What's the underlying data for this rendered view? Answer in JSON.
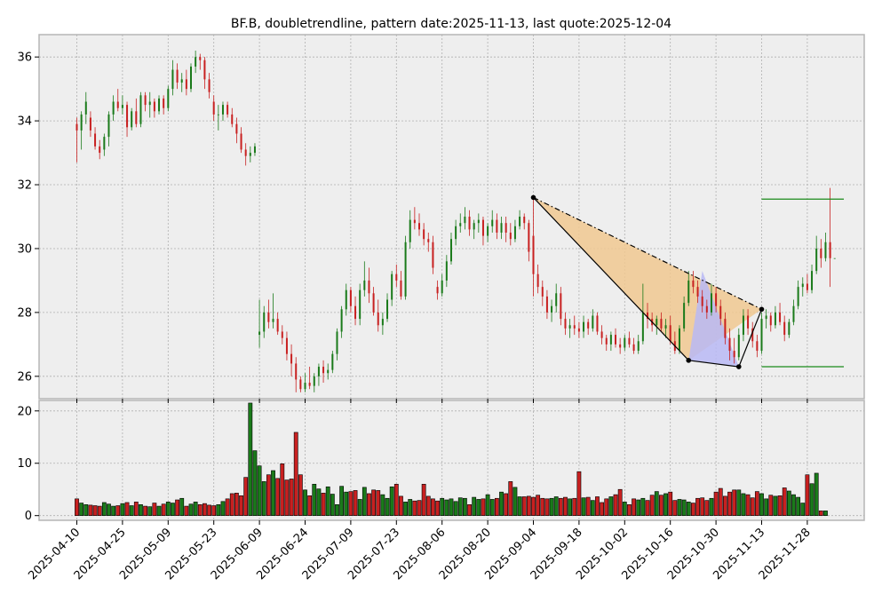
{
  "chart_data": {
    "type": "candlestick",
    "title": "BF.B, doubletrendline, pattern date:2025-11-13, last quote:2025-12-04",
    "price_ylim": [
      25.3,
      36.7
    ],
    "price_yticks": [
      26,
      28,
      30,
      32,
      34,
      36
    ],
    "volume_ylim": [
      -0.9,
      22
    ],
    "volume_yticks": [
      0,
      10,
      20
    ],
    "xtick_labels": [
      "2025-04-10",
      "2025-04-25",
      "2025-05-09",
      "2025-05-23",
      "2025-06-09",
      "2025-06-24",
      "2025-07-09",
      "2025-07-23",
      "2025-08-06",
      "2025-08-20",
      "2025-09-04",
      "2025-09-18",
      "2025-10-02",
      "2025-10-16",
      "2025-10-30",
      "2025-11-13",
      "2025-11-28"
    ],
    "xtick_index": [
      0,
      10,
      20,
      30,
      40,
      50,
      60,
      70,
      80,
      90,
      100,
      110,
      120,
      130,
      140,
      150,
      160
    ],
    "n_bars": 165,
    "colors": {
      "up": "#1a7a1a",
      "down": "#c82020",
      "triangle_left": "#f0c890",
      "triangle_right": "#b8b8f4",
      "level_line": "#1a8a1a",
      "background": "#eeeeee",
      "grid": "#b0b0b0"
    },
    "ohlc": [
      [
        33.9,
        34.1,
        32.7,
        33.7
      ],
      [
        33.7,
        34.3,
        33.1,
        34.2
      ],
      [
        34.2,
        34.9,
        33.9,
        34.6
      ],
      [
        34.1,
        34.3,
        33.5,
        33.7
      ],
      [
        33.6,
        33.8,
        33.1,
        33.2
      ],
      [
        33.2,
        33.4,
        32.8,
        33.0
      ],
      [
        33.1,
        33.6,
        32.9,
        33.5
      ],
      [
        33.5,
        34.3,
        33.2,
        34.2
      ],
      [
        34.2,
        34.8,
        34.0,
        34.6
      ],
      [
        34.6,
        35.0,
        34.3,
        34.4
      ],
      [
        34.4,
        34.8,
        34.2,
        34.5
      ],
      [
        34.5,
        34.6,
        33.5,
        33.8
      ],
      [
        33.8,
        34.4,
        33.7,
        34.3
      ],
      [
        34.3,
        34.7,
        33.8,
        33.9
      ],
      [
        33.9,
        34.9,
        33.8,
        34.8
      ],
      [
        34.8,
        34.9,
        34.3,
        34.5
      ],
      [
        34.5,
        34.9,
        34.1,
        34.6
      ],
      [
        34.6,
        34.7,
        34.1,
        34.3
      ],
      [
        34.3,
        34.8,
        34.2,
        34.7
      ],
      [
        34.7,
        34.8,
        34.2,
        34.4
      ],
      [
        34.4,
        35.1,
        34.3,
        35.0
      ],
      [
        35.0,
        35.9,
        34.8,
        35.6
      ],
      [
        35.6,
        35.8,
        35.0,
        35.2
      ],
      [
        35.2,
        35.5,
        34.9,
        35.3
      ],
      [
        35.3,
        35.6,
        34.8,
        35.0
      ],
      [
        35.0,
        35.8,
        34.9,
        35.7
      ],
      [
        35.7,
        36.2,
        35.5,
        36.0
      ],
      [
        36.0,
        36.1,
        35.6,
        35.9
      ],
      [
        35.9,
        36.0,
        35.0,
        35.3
      ],
      [
        35.3,
        35.5,
        34.7,
        34.9
      ],
      [
        34.6,
        34.8,
        34.0,
        34.2
      ],
      [
        34.2,
        34.5,
        33.7,
        34.2
      ],
      [
        34.2,
        34.6,
        34.0,
        34.5
      ],
      [
        34.5,
        34.6,
        34.1,
        34.2
      ],
      [
        34.2,
        34.4,
        33.8,
        33.9
      ],
      [
        33.9,
        34.1,
        33.3,
        33.6
      ],
      [
        33.6,
        33.8,
        33.0,
        33.1
      ],
      [
        33.1,
        33.3,
        32.6,
        32.9
      ],
      [
        32.9,
        33.2,
        32.7,
        33.0
      ],
      [
        33.0,
        33.3,
        32.9,
        33.2
      ],
      [
        27.3,
        28.4,
        26.9,
        27.4
      ],
      [
        27.4,
        28.2,
        27.2,
        28.0
      ],
      [
        28.0,
        28.4,
        27.5,
        27.7
      ],
      [
        27.7,
        28.6,
        27.5,
        27.8
      ],
      [
        27.8,
        28.0,
        27.3,
        27.4
      ],
      [
        27.4,
        27.6,
        27.0,
        27.2
      ],
      [
        27.2,
        27.4,
        26.5,
        26.7
      ],
      [
        26.7,
        27.0,
        26.0,
        26.4
      ],
      [
        26.4,
        26.6,
        25.5,
        25.9
      ],
      [
        25.9,
        26.0,
        25.5,
        25.6
      ],
      [
        25.6,
        26.1,
        25.5,
        25.8
      ],
      [
        25.8,
        26.3,
        25.6,
        25.7
      ],
      [
        25.7,
        26.1,
        25.5,
        26.0
      ],
      [
        26.0,
        26.4,
        25.7,
        26.3
      ],
      [
        26.3,
        26.5,
        25.8,
        26.1
      ],
      [
        26.1,
        26.4,
        25.9,
        26.2
      ],
      [
        26.2,
        26.8,
        26.1,
        26.7
      ],
      [
        26.7,
        27.5,
        26.5,
        27.4
      ],
      [
        27.4,
        28.2,
        27.2,
        28.1
      ],
      [
        28.1,
        28.9,
        27.9,
        28.7
      ],
      [
        28.7,
        28.8,
        28.0,
        28.2
      ],
      [
        28.2,
        28.5,
        27.6,
        27.8
      ],
      [
        27.8,
        28.9,
        27.6,
        28.7
      ],
      [
        28.7,
        29.6,
        28.5,
        29.0
      ],
      [
        29.0,
        29.4,
        28.3,
        28.6
      ],
      [
        28.6,
        28.8,
        27.9,
        28.0
      ],
      [
        28.0,
        28.4,
        27.4,
        27.6
      ],
      [
        27.6,
        28.0,
        27.3,
        27.8
      ],
      [
        27.8,
        28.6,
        27.7,
        28.4
      ],
      [
        28.4,
        29.3,
        28.2,
        29.2
      ],
      [
        29.2,
        29.5,
        28.8,
        29.0
      ],
      [
        29.0,
        29.3,
        28.4,
        28.5
      ],
      [
        28.5,
        30.4,
        28.4,
        30.2
      ],
      [
        30.2,
        31.2,
        30.0,
        30.9
      ],
      [
        30.9,
        31.3,
        30.6,
        30.8
      ],
      [
        30.8,
        31.1,
        30.4,
        30.6
      ],
      [
        30.6,
        30.8,
        30.1,
        30.3
      ],
      [
        30.3,
        30.5,
        29.9,
        30.2
      ],
      [
        30.2,
        30.4,
        29.2,
        29.4
      ],
      [
        28.8,
        29.0,
        28.4,
        28.6
      ],
      [
        28.6,
        29.2,
        28.5,
        29.0
      ],
      [
        29.0,
        29.8,
        28.8,
        29.6
      ],
      [
        29.6,
        30.5,
        29.5,
        30.3
      ],
      [
        30.3,
        30.9,
        30.1,
        30.7
      ],
      [
        30.7,
        31.1,
        30.5,
        30.8
      ],
      [
        30.8,
        31.3,
        30.6,
        31.0
      ],
      [
        31.0,
        31.2,
        30.4,
        30.6
      ],
      [
        30.6,
        30.9,
        30.3,
        30.8
      ],
      [
        30.8,
        31.1,
        30.5,
        30.9
      ],
      [
        30.9,
        31.0,
        30.1,
        30.4
      ],
      [
        30.4,
        30.8,
        30.2,
        30.7
      ],
      [
        30.7,
        31.2,
        30.5,
        30.9
      ],
      [
        30.9,
        31.1,
        30.3,
        30.5
      ],
      [
        30.5,
        31.0,
        30.3,
        30.8
      ],
      [
        30.8,
        31.0,
        30.2,
        30.5
      ],
      [
        30.5,
        30.8,
        30.1,
        30.3
      ],
      [
        30.3,
        30.9,
        30.2,
        30.7
      ],
      [
        30.7,
        31.2,
        30.6,
        31.0
      ],
      [
        31.0,
        31.1,
        30.6,
        30.8
      ],
      [
        30.8,
        30.9,
        29.6,
        29.9
      ],
      [
        30.4,
        31.6,
        28.5,
        29.2
      ],
      [
        29.2,
        29.5,
        28.6,
        28.8
      ],
      [
        28.8,
        29.0,
        28.2,
        28.5
      ],
      [
        28.5,
        28.7,
        27.8,
        28.0
      ],
      [
        28.0,
        28.4,
        27.7,
        28.2
      ],
      [
        28.2,
        28.9,
        28.0,
        28.6
      ],
      [
        28.6,
        28.8,
        27.6,
        27.8
      ],
      [
        27.8,
        28.0,
        27.3,
        27.5
      ],
      [
        27.5,
        27.8,
        27.2,
        27.6
      ],
      [
        27.6,
        27.9,
        27.3,
        27.5
      ],
      [
        27.5,
        27.7,
        27.2,
        27.4
      ],
      [
        27.4,
        27.9,
        27.2,
        27.7
      ],
      [
        27.7,
        27.8,
        27.3,
        27.5
      ],
      [
        27.5,
        28.1,
        27.4,
        27.9
      ],
      [
        27.9,
        28.0,
        27.3,
        27.4
      ],
      [
        27.4,
        27.6,
        27.0,
        27.2
      ],
      [
        27.2,
        27.3,
        26.8,
        27.0
      ],
      [
        27.0,
        27.4,
        26.8,
        27.3
      ],
      [
        27.3,
        27.5,
        26.9,
        27.0
      ],
      [
        27.0,
        27.2,
        26.7,
        26.9
      ],
      [
        26.9,
        27.3,
        26.8,
        27.2
      ],
      [
        27.2,
        27.4,
        26.9,
        27.0
      ],
      [
        27.0,
        27.2,
        26.7,
        26.8
      ],
      [
        26.8,
        27.3,
        26.7,
        27.1
      ],
      [
        27.1,
        28.9,
        27.0,
        28.0
      ],
      [
        28.0,
        28.3,
        27.5,
        27.8
      ],
      [
        27.8,
        28.0,
        27.4,
        27.6
      ],
      [
        27.6,
        27.9,
        27.3,
        27.8
      ],
      [
        27.8,
        28.0,
        27.4,
        27.5
      ],
      [
        27.5,
        27.8,
        27.2,
        27.6
      ],
      [
        27.6,
        27.9,
        27.0,
        27.1
      ],
      [
        27.1,
        27.4,
        26.7,
        26.8
      ],
      [
        26.8,
        27.6,
        26.7,
        27.5
      ],
      [
        27.5,
        28.5,
        27.4,
        28.3
      ],
      [
        28.3,
        29.3,
        28.2,
        29.0
      ],
      [
        29.0,
        29.3,
        28.6,
        28.8
      ],
      [
        28.8,
        29.0,
        28.3,
        28.5
      ],
      [
        28.5,
        28.7,
        28.0,
        28.2
      ],
      [
        28.2,
        28.4,
        27.8,
        28.0
      ],
      [
        28.0,
        28.9,
        27.9,
        28.6
      ],
      [
        28.6,
        28.8,
        28.0,
        28.2
      ],
      [
        28.2,
        28.4,
        27.6,
        27.8
      ],
      [
        27.8,
        28.0,
        27.0,
        27.2
      ],
      [
        27.2,
        27.5,
        26.5,
        26.8
      ],
      [
        26.8,
        27.2,
        26.4,
        26.6
      ],
      [
        26.6,
        27.5,
        26.5,
        27.3
      ],
      [
        27.3,
        28.1,
        27.1,
        27.9
      ],
      [
        27.9,
        28.1,
        27.3,
        27.5
      ],
      [
        27.5,
        27.7,
        26.9,
        27.1
      ],
      [
        27.1,
        27.3,
        26.6,
        26.8
      ],
      [
        26.8,
        28.0,
        26.7,
        27.8
      ],
      [
        27.8,
        28.1,
        27.5,
        27.9
      ],
      [
        27.9,
        28.0,
        27.4,
        27.6
      ],
      [
        27.6,
        28.2,
        27.5,
        28.0
      ],
      [
        28.0,
        28.3,
        27.6,
        27.7
      ],
      [
        27.7,
        27.9,
        27.1,
        27.3
      ],
      [
        27.3,
        27.8,
        27.2,
        27.7
      ],
      [
        27.7,
        28.4,
        27.6,
        28.2
      ],
      [
        28.2,
        29.0,
        28.1,
        28.8
      ],
      [
        28.8,
        29.1,
        28.5,
        28.9
      ],
      [
        28.9,
        29.2,
        28.6,
        28.7
      ],
      [
        28.7,
        29.5,
        28.6,
        29.3
      ],
      [
        29.3,
        30.4,
        29.2,
        30.0
      ],
      [
        30.0,
        30.3,
        29.4,
        29.7
      ],
      [
        29.7,
        30.5,
        29.6,
        30.2
      ],
      [
        30.2,
        31.9,
        28.8,
        29.7
      ],
      [
        29.7,
        29.7,
        29.7,
        29.7
      ]
    ],
    "volume": [
      3.2,
      2.4,
      2.1,
      2.0,
      1.9,
      1.8,
      2.5,
      2.2,
      1.8,
      1.9,
      2.3,
      2.5,
      1.9,
      2.6,
      2.1,
      1.8,
      1.7,
      2.4,
      1.8,
      2.2,
      2.6,
      2.4,
      3.0,
      3.3,
      1.8,
      2.2,
      2.6,
      2.1,
      2.3,
      2.0,
      1.9,
      2.1,
      2.7,
      3.2,
      4.2,
      4.3,
      3.8,
      7.3,
      21.5,
      12.4,
      9.5,
      6.5,
      7.8,
      8.6,
      7.1,
      9.9,
      6.8,
      7.0,
      15.9,
      7.8,
      4.9,
      3.8,
      6.0,
      5.1,
      4.3,
      5.5,
      4.1,
      2.1,
      5.6,
      4.5,
      4.6,
      4.8,
      3.1,
      5.4,
      4.2,
      4.9,
      4.8,
      4.0,
      3.3,
      5.5,
      6.0,
      3.7,
      2.6,
      3.1,
      2.8,
      2.9,
      6.0,
      3.7,
      3.2,
      2.8,
      3.3,
      3.0,
      3.2,
      2.7,
      3.4,
      3.3,
      2.1,
      3.5,
      3.1,
      3.2,
      4.0,
      3.1,
      3.3,
      4.5,
      4.2,
      6.5,
      5.4,
      3.6,
      3.6,
      3.7,
      3.5,
      3.9,
      3.3,
      3.2,
      3.3,
      3.6,
      3.3,
      3.5,
      3.2,
      3.3,
      8.4,
      3.4,
      3.5,
      2.9,
      3.6,
      2.5,
      3.2,
      3.6,
      4.0,
      5.0,
      2.6,
      2.1,
      3.2,
      3.0,
      3.3,
      2.9,
      3.9,
      4.6,
      3.9,
      4.2,
      4.5,
      2.9,
      3.1,
      3.0,
      2.6,
      2.4,
      3.3,
      3.4,
      2.9,
      3.3,
      4.5,
      5.2,
      3.7,
      4.5,
      4.9,
      4.9,
      4.2,
      4.0,
      3.4,
      4.6,
      4.2,
      3.2,
      3.9,
      3.7,
      3.8,
      5.3,
      4.7,
      4.0,
      3.5,
      2.4,
      7.8,
      6.1,
      8.1,
      0.9,
      0.9
    ],
    "pattern": {
      "points": [
        [
          100,
          31.6
        ],
        [
          134,
          26.5
        ],
        [
          145,
          26.3
        ],
        [
          150,
          28.1
        ]
      ],
      "dashed_trendline": [
        [
          100,
          31.6
        ],
        [
          150,
          28.1
        ]
      ],
      "right_wedge": [
        [
          134,
          26.5
        ],
        [
          145,
          26.3
        ],
        [
          137,
          29.3
        ]
      ],
      "levels": [
        {
          "value": 31.55,
          "from": 150,
          "to": 168
        },
        {
          "value": 26.3,
          "from": 150,
          "to": 168
        }
      ]
    }
  }
}
